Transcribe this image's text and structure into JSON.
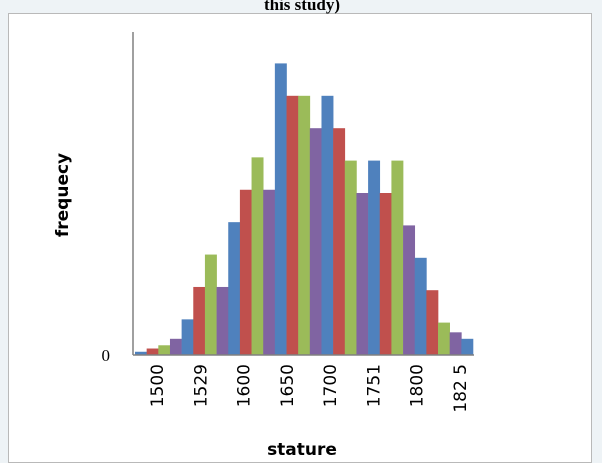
{
  "chart_data": {
    "type": "bar",
    "title": "this study)",
    "xlabel": "stature",
    "ylabel": "frequecy",
    "x_tick_labels": [
      "1500",
      "1529",
      "1600",
      "1650",
      "1700",
      "1751",
      "1800",
      "182 5"
    ],
    "y_tick_labels": [
      "0"
    ],
    "grid": false,
    "legend": "none",
    "bars": [
      {
        "color": "#4f81bd",
        "value": 1
      },
      {
        "color": "#c0504d",
        "value": 2
      },
      {
        "color": "#9bbb59",
        "value": 3
      },
      {
        "color": "#8064a2",
        "value": 5
      },
      {
        "color": "#4f81bd",
        "value": 11
      },
      {
        "color": "#c0504d",
        "value": 21
      },
      {
        "color": "#9bbb59",
        "value": 31
      },
      {
        "color": "#8064a2",
        "value": 21
      },
      {
        "color": "#4f81bd",
        "value": 41
      },
      {
        "color": "#c0504d",
        "value": 51
      },
      {
        "color": "#9bbb59",
        "value": 61
      },
      {
        "color": "#8064a2",
        "value": 51
      },
      {
        "color": "#4f81bd",
        "value": 90
      },
      {
        "color": "#c0504d",
        "value": 80
      },
      {
        "color": "#9bbb59",
        "value": 80
      },
      {
        "color": "#8064a2",
        "value": 70
      },
      {
        "color": "#4f81bd",
        "value": 80
      },
      {
        "color": "#c0504d",
        "value": 70
      },
      {
        "color": "#9bbb59",
        "value": 60
      },
      {
        "color": "#8064a2",
        "value": 50
      },
      {
        "color": "#4f81bd",
        "value": 60
      },
      {
        "color": "#c0504d",
        "value": 50
      },
      {
        "color": "#9bbb59",
        "value": 60
      },
      {
        "color": "#8064a2",
        "value": 40
      },
      {
        "color": "#4f81bd",
        "value": 30
      },
      {
        "color": "#c0504d",
        "value": 20
      },
      {
        "color": "#9bbb59",
        "value": 10
      },
      {
        "color": "#8064a2",
        "value": 7
      },
      {
        "color": "#4f81bd",
        "value": 5
      }
    ],
    "y_range": [
      0,
      100
    ]
  }
}
